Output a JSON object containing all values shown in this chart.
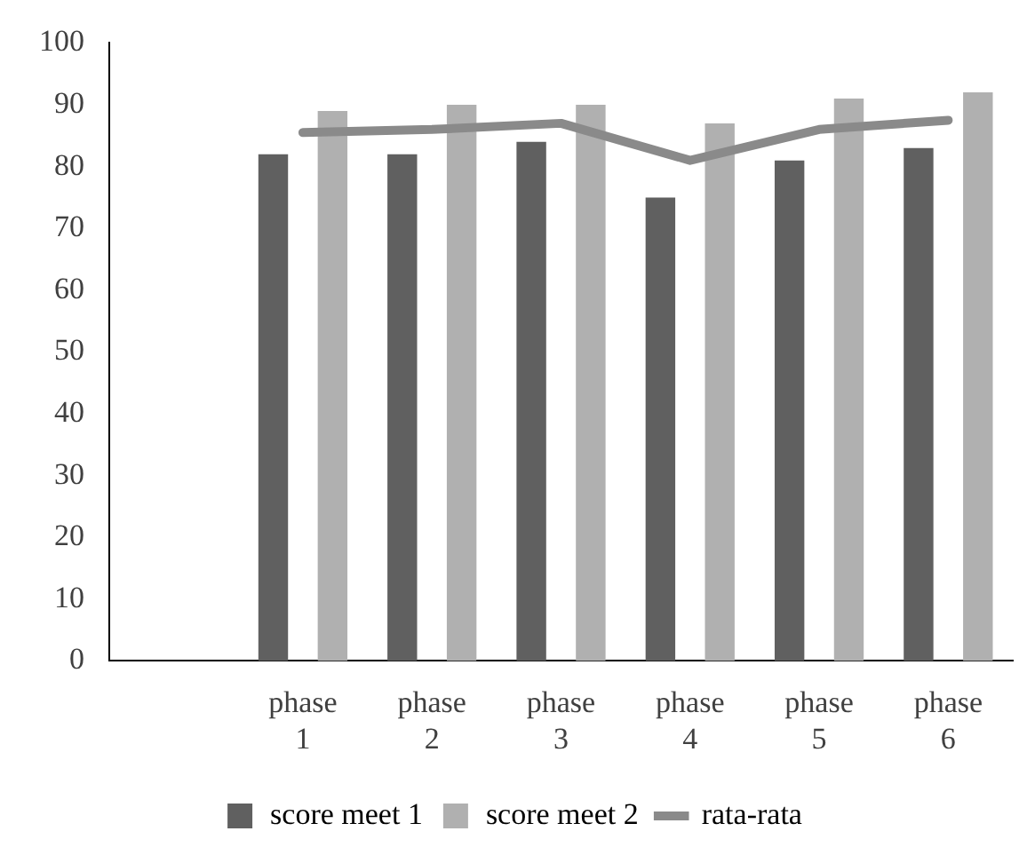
{
  "chart_data": {
    "type": "bar",
    "categories": [
      null,
      "phase 1",
      "phase 2",
      "phase 3",
      "phase 4",
      "phase 5",
      "phase 6"
    ],
    "series": [
      {
        "name": "score meet 1",
        "color": "#606060",
        "values": [
          null,
          82,
          82,
          84,
          75,
          81,
          83
        ]
      },
      {
        "name": "score meet 2",
        "color": "#b0b0b0",
        "values": [
          null,
          89,
          90,
          90,
          87,
          91,
          92
        ]
      },
      {
        "name": "rata-rata",
        "type": "line",
        "color": "#8a8a8a",
        "values": [
          null,
          85.5,
          86,
          87,
          81,
          86,
          87.5
        ]
      }
    ],
    "ylim": [
      0,
      100
    ],
    "yticks": [
      0,
      10,
      20,
      30,
      40,
      50,
      60,
      70,
      80,
      90,
      100
    ],
    "grid": false,
    "legend": "bottom",
    "marker": "none"
  }
}
